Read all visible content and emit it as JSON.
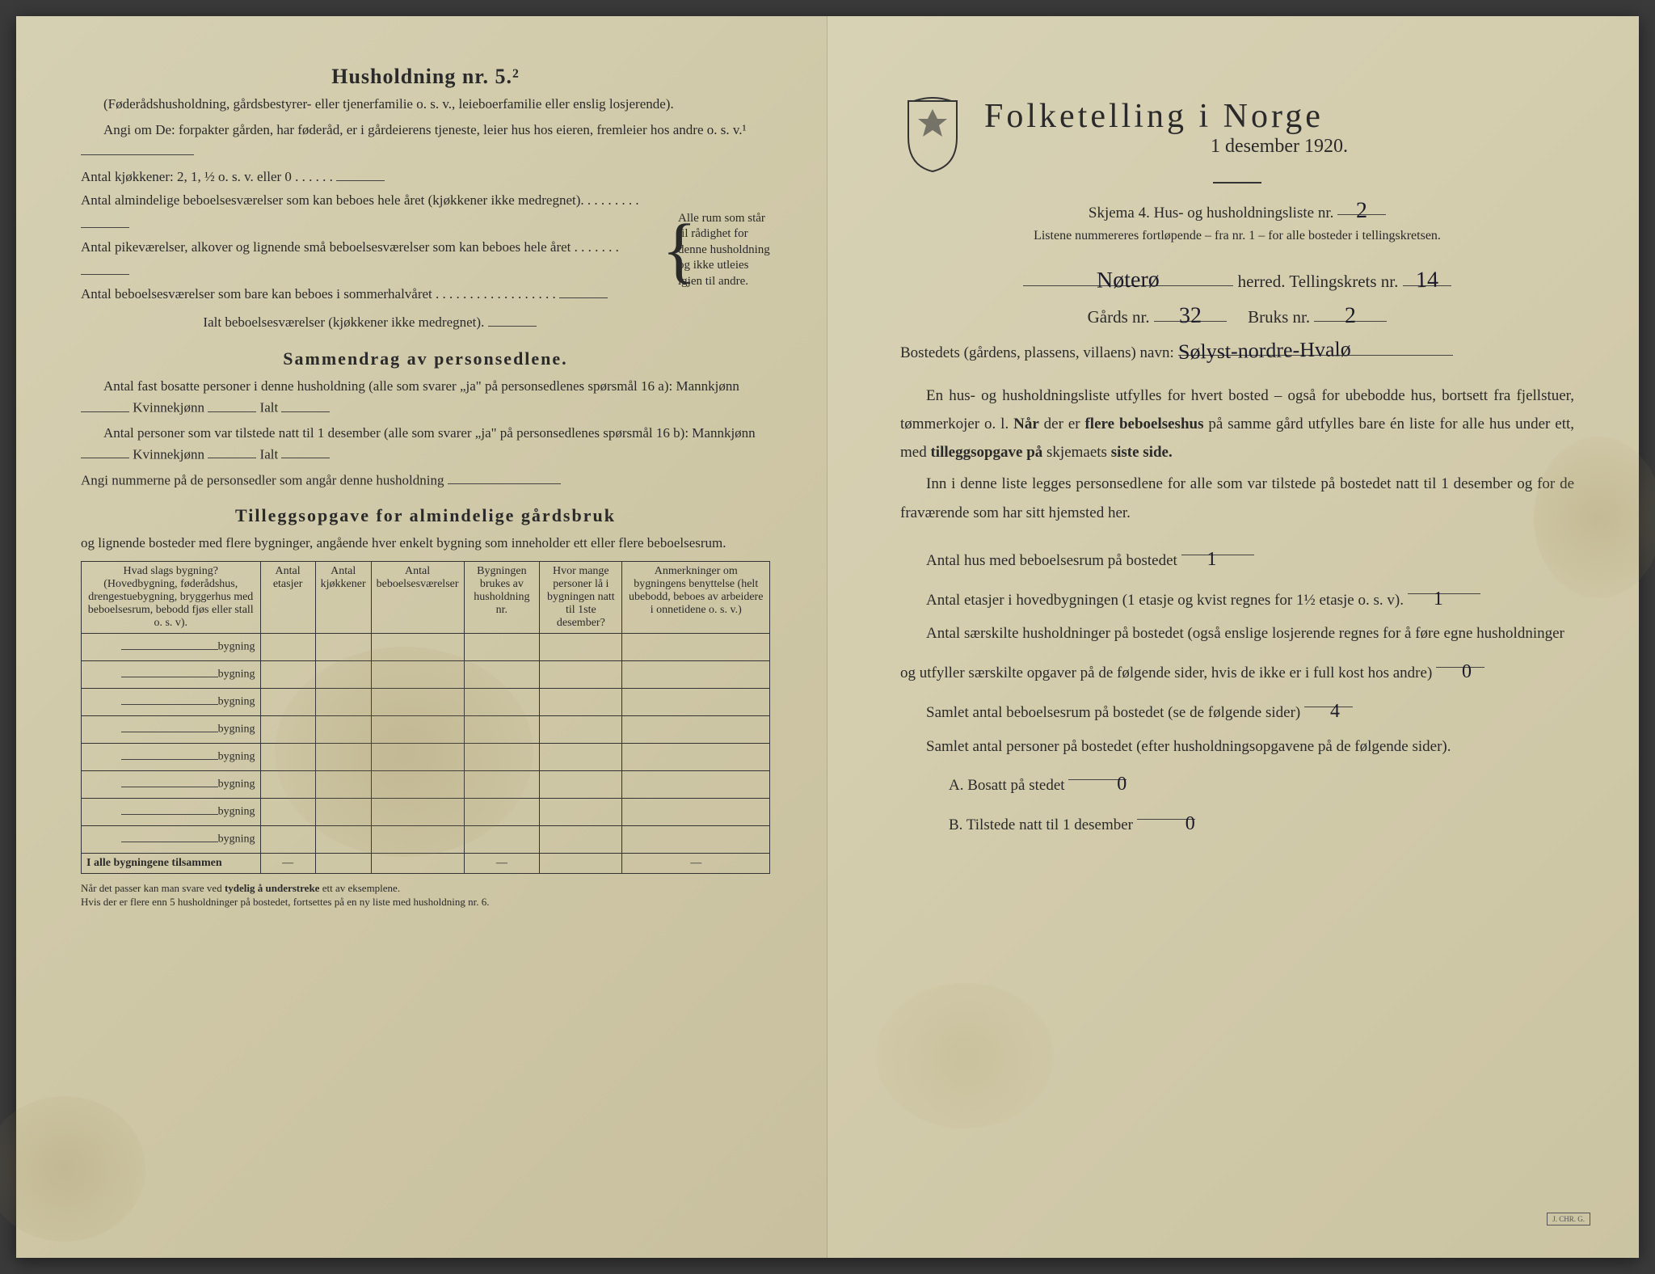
{
  "left": {
    "heading": "Husholdning nr. 5.²",
    "sub1": "(Føderådshusholdning, gårdsbestyrer- eller tjenerfamilie o. s. v., leieboerfamilie eller enslig losjerende).",
    "sub2": "Angi om De: forpakter gården, har føderåd, er i gårdeierens tjeneste, leier hus hos eieren, fremleier hos andre o. s. v.¹",
    "kjokkener": "Antal kjøkkener: 2, 1, ½ o. s. v. eller 0 . . . . . .",
    "rooms": [
      "Antal almindelige beboelsesværelser som kan beboes hele året (kjøkkener ikke medregnet). . . . . . . . .",
      "Antal pikeværelser, alkover og lignende små beboelsesværelser som kan beboes hele året . . . . . . .",
      "Antal beboelsesværelser som bare kan beboes i sommerhalvåret . . . . . . . . . . . . . . . . . ."
    ],
    "ialt": "Ialt beboelsesværelser (kjøkkener ikke medregnet).",
    "brace_text": "Alle rum som står til rådighet for denne husholdning og ikke utleies igjen til andre.",
    "sammendrag_h": "Sammendrag av personsedlene.",
    "s1": "Antal fast bosatte personer i denne husholdning (alle som svarer „ja\" på personsedlenes spørsmål 16 a): Mannkjønn",
    "s1b": "Kvinnekjønn",
    "s1c": "Ialt",
    "s2": "Antal personer som var tilstede natt til 1 desember (alle som svarer „ja\" på personsedlenes spørsmål 16 b): Mannkjønn",
    "s3": "Angi nummerne på de personsedler som angår denne husholdning",
    "tillegg_h": "Tilleggsopgave for almindelige gårdsbruk",
    "tillegg_sub": "og lignende bosteder med flere bygninger, angående hver enkelt bygning som inneholder ett eller flere beboelsesrum.",
    "table": {
      "headers": [
        "Hvad slags bygning?\n(Hovedbygning, føderådshus, drengestuebygning, bryggerhus med beboelsesrum, bebodd fjøs eller stall o. s. v).",
        "Antal etasjer",
        "Antal kjøkkener",
        "Antal beboelsesværelser",
        "Bygningen brukes av husholdning nr.",
        "Hvor mange personer lå i bygningen natt til 1ste desember?",
        "Anmerkninger om bygningens benyttelse (helt ubebodd, beboes av arbeidere i onnetidene o. s. v.)"
      ],
      "row_label": "bygning",
      "row_count": 8,
      "sum_label": "I alle bygningene tilsammen"
    },
    "footnote": "Når det passer kan man svare ved tydelig å understreke ett av eksemplene.\nHvis der er flere enn 5 husholdninger på bostedet, fortsettes på en ny liste med husholdning nr. 6."
  },
  "right": {
    "title": "Folketelling i Norge",
    "date": "1 desember 1920.",
    "skjema": "Skjema 4.  Hus- og husholdningsliste nr.",
    "skjema_nr": "2",
    "listene": "Listene nummereres fortløpende – fra nr. 1 – for alle bosteder i tellingskretsen.",
    "herred_val": "Nøterø",
    "herred_lbl": "herred.   Tellingskrets nr.",
    "krets_nr": "14",
    "gards_lbl": "Gårds nr.",
    "gards_nr": "32",
    "bruks_lbl": "Bruks nr.",
    "bruks_nr": "2",
    "bosted_lbl": "Bostedets (gårdens, plassens, villaens) navn:",
    "bosted_val": "Sølyst-nordre-Hvalø",
    "para1": "En hus- og husholdningsliste utfylles for hvert bosted – også for ubebodde hus, bortsett fra fjellstuer, tømmerkojer o. l.  Når der er flere beboelseshus på samme gård utfylles bare én liste for alle hus under ett, med tilleggsopgave på skjemaets siste side.",
    "para2": "Inn i denne liste legges personsedlene for alle som var tilstede på bostedet natt til 1 desember og for de fraværende som har sitt hjemsted her.",
    "q1": "Antal hus med beboelsesrum på bostedet",
    "q1_val": "1",
    "q2a": "Antal etasjer i hovedbygningen (1 etasje og kvist regnes for 1½ etasje o. s. v).",
    "q2_val": "1",
    "q3": "Antal særskilte husholdninger på bostedet (også enslige losjerende regnes for å føre egne husholdninger og utfyller særskilte opgaver på de følgende sider, hvis de ikke er i full kost hos andre)",
    "q3_val": "0",
    "q4": "Samlet antal beboelsesrum på bostedet (se de følgende sider)",
    "q4_val": "4",
    "q5": "Samlet antal personer på bostedet (efter husholdningsopgavene på de følgende sider).",
    "qA": "A.  Bosatt på stedet",
    "qA_val": "0",
    "qB": "B.  Tilstede natt til 1 desember",
    "qB_val": "0"
  },
  "colors": {
    "paper": "#d4cdb0",
    "ink": "#2a2a2a",
    "handwriting": "#1a1a2a"
  }
}
